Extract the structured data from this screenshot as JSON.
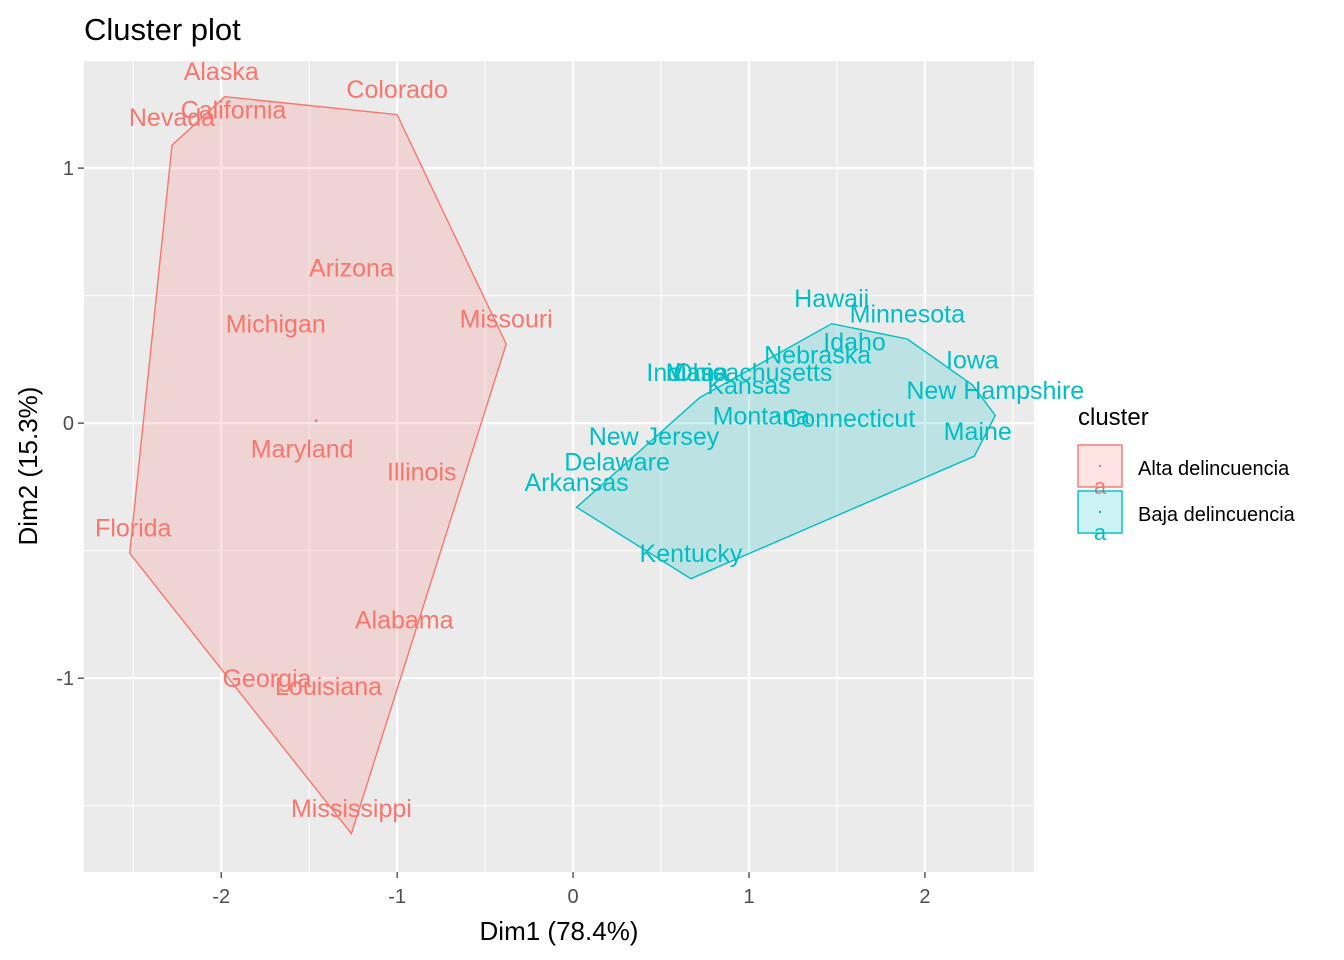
{
  "chart_data": {
    "type": "scatter",
    "title": "Cluster plot",
    "xlabel": "Dim1 (78.4%)",
    "ylabel": "Dim2 (15.3%)",
    "xlim": [
      -2.78,
      2.62
    ],
    "ylim": [
      -1.76,
      1.42
    ],
    "x_ticks": [
      -2,
      -1,
      0,
      1,
      2
    ],
    "y_ticks": [
      -1,
      0,
      1
    ],
    "grid": true,
    "legend": {
      "title": "cluster",
      "placement": "right"
    },
    "series": [
      {
        "name": "Alta delincuencia",
        "color": "#F8766D",
        "fill": "#F8766D",
        "centroid": [
          -1.46,
          0.01
        ],
        "points": [
          {
            "label": "Alaska",
            "x": -2.0,
            "y": 1.38
          },
          {
            "label": "Colorado",
            "x": -1.0,
            "y": 1.31
          },
          {
            "label": "Nevada",
            "x": -2.28,
            "y": 1.2
          },
          {
            "label": "California",
            "x": -1.93,
            "y": 1.23
          },
          {
            "label": "Arizona",
            "x": -1.26,
            "y": 0.61
          },
          {
            "label": "Michigan",
            "x": -1.69,
            "y": 0.39
          },
          {
            "label": "Missouri",
            "x": -0.38,
            "y": 0.41
          },
          {
            "label": "Maryland",
            "x": -1.54,
            "y": -0.1
          },
          {
            "label": "Illinois",
            "x": -0.86,
            "y": -0.19
          },
          {
            "label": "Florida",
            "x": -2.5,
            "y": -0.41
          },
          {
            "label": "Alabama",
            "x": -0.96,
            "y": -0.77
          },
          {
            "label": "Georgia",
            "x": -1.74,
            "y": -1.0
          },
          {
            "label": "Louisiana",
            "x": -1.39,
            "y": -1.03
          },
          {
            "label": "Mississippi",
            "x": -1.26,
            "y": -1.51
          }
        ],
        "hull": [
          [
            -1.98,
            1.28
          ],
          [
            -1.0,
            1.21
          ],
          [
            -0.38,
            0.31
          ],
          [
            -1.26,
            -1.61
          ],
          [
            -2.52,
            -0.51
          ],
          [
            -2.28,
            1.09
          ]
        ]
      },
      {
        "name": "Baja delincuencia",
        "color": "#00BFC4",
        "fill": "#00BFC4",
        "centroid": [
          1.16,
          0.03
        ],
        "points": [
          {
            "label": "Hawaii",
            "x": 1.47,
            "y": 0.49
          },
          {
            "label": "Minnesota",
            "x": 1.9,
            "y": 0.43
          },
          {
            "label": "Idaho",
            "x": 1.6,
            "y": 0.32
          },
          {
            "label": "Nebraska",
            "x": 1.39,
            "y": 0.27
          },
          {
            "label": "Iowa",
            "x": 2.27,
            "y": 0.25
          },
          {
            "label": "Indiana",
            "x": 0.65,
            "y": 0.2
          },
          {
            "label": "Ohio",
            "x": 0.72,
            "y": 0.2
          },
          {
            "label": "Massachusetts",
            "x": 1.0,
            "y": 0.2
          },
          {
            "label": "Kansas",
            "x": 1.0,
            "y": 0.15
          },
          {
            "label": "New Hampshire",
            "x": 2.4,
            "y": 0.13
          },
          {
            "label": "Montana",
            "x": 1.07,
            "y": 0.03
          },
          {
            "label": "Connecticut",
            "x": 1.57,
            "y": 0.02
          },
          {
            "label": "Maine",
            "x": 2.3,
            "y": -0.03
          },
          {
            "label": "New Jersey",
            "x": 0.46,
            "y": -0.05
          },
          {
            "label": "Delaware",
            "x": 0.25,
            "y": -0.15
          },
          {
            "label": "Arkansas",
            "x": 0.02,
            "y": -0.23
          },
          {
            "label": "Kentucky",
            "x": 0.67,
            "y": -0.51
          }
        ],
        "hull": [
          [
            0.02,
            -0.33
          ],
          [
            0.67,
            -0.61
          ],
          [
            2.28,
            -0.13
          ],
          [
            2.4,
            0.03
          ],
          [
            2.27,
            0.15
          ],
          [
            1.9,
            0.33
          ],
          [
            1.47,
            0.39
          ],
          [
            0.72,
            0.1
          ]
        ]
      }
    ]
  },
  "legend_key_glyph": "a"
}
